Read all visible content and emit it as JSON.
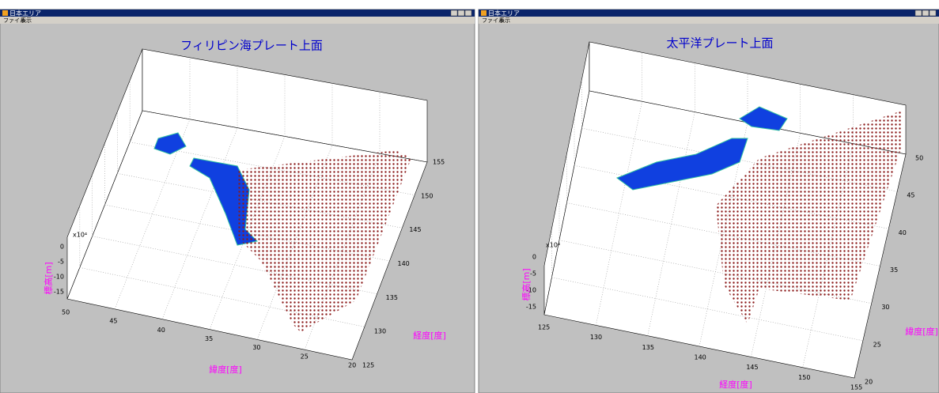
{
  "windows": [
    {
      "title": "日本エリア",
      "menu": [
        "ファイル",
        "表示"
      ],
      "plot": {
        "title": "フィリピン海プレート上面",
        "xlabel": "経度[度]",
        "ylabel": "緯度[度]",
        "zlabel": "標高[m]",
        "z_exponent": "x10⁴",
        "xticks": [
          "125",
          "130",
          "135",
          "140",
          "145",
          "150",
          "155"
        ],
        "yticks": [
          "50",
          "45",
          "40",
          "35",
          "30",
          "25",
          "20"
        ],
        "zticks": [
          "0",
          "-5",
          "-10",
          "-15"
        ]
      }
    },
    {
      "title": "日本エリア",
      "menu": [
        "ファイル",
        "表示"
      ],
      "plot": {
        "title": "太平洋プレート上面",
        "xlabel": "経度[度]",
        "ylabel": "緯度[度]",
        "zlabel": "標高[m]",
        "z_exponent": "x10⁴",
        "xticks": [
          "125",
          "130",
          "135",
          "140",
          "145",
          "150",
          "155"
        ],
        "yticks": [
          "20",
          "25",
          "30",
          "35",
          "40",
          "45",
          "50"
        ],
        "zticks": [
          "0",
          "-5",
          "-10",
          "-15"
        ]
      }
    }
  ]
}
